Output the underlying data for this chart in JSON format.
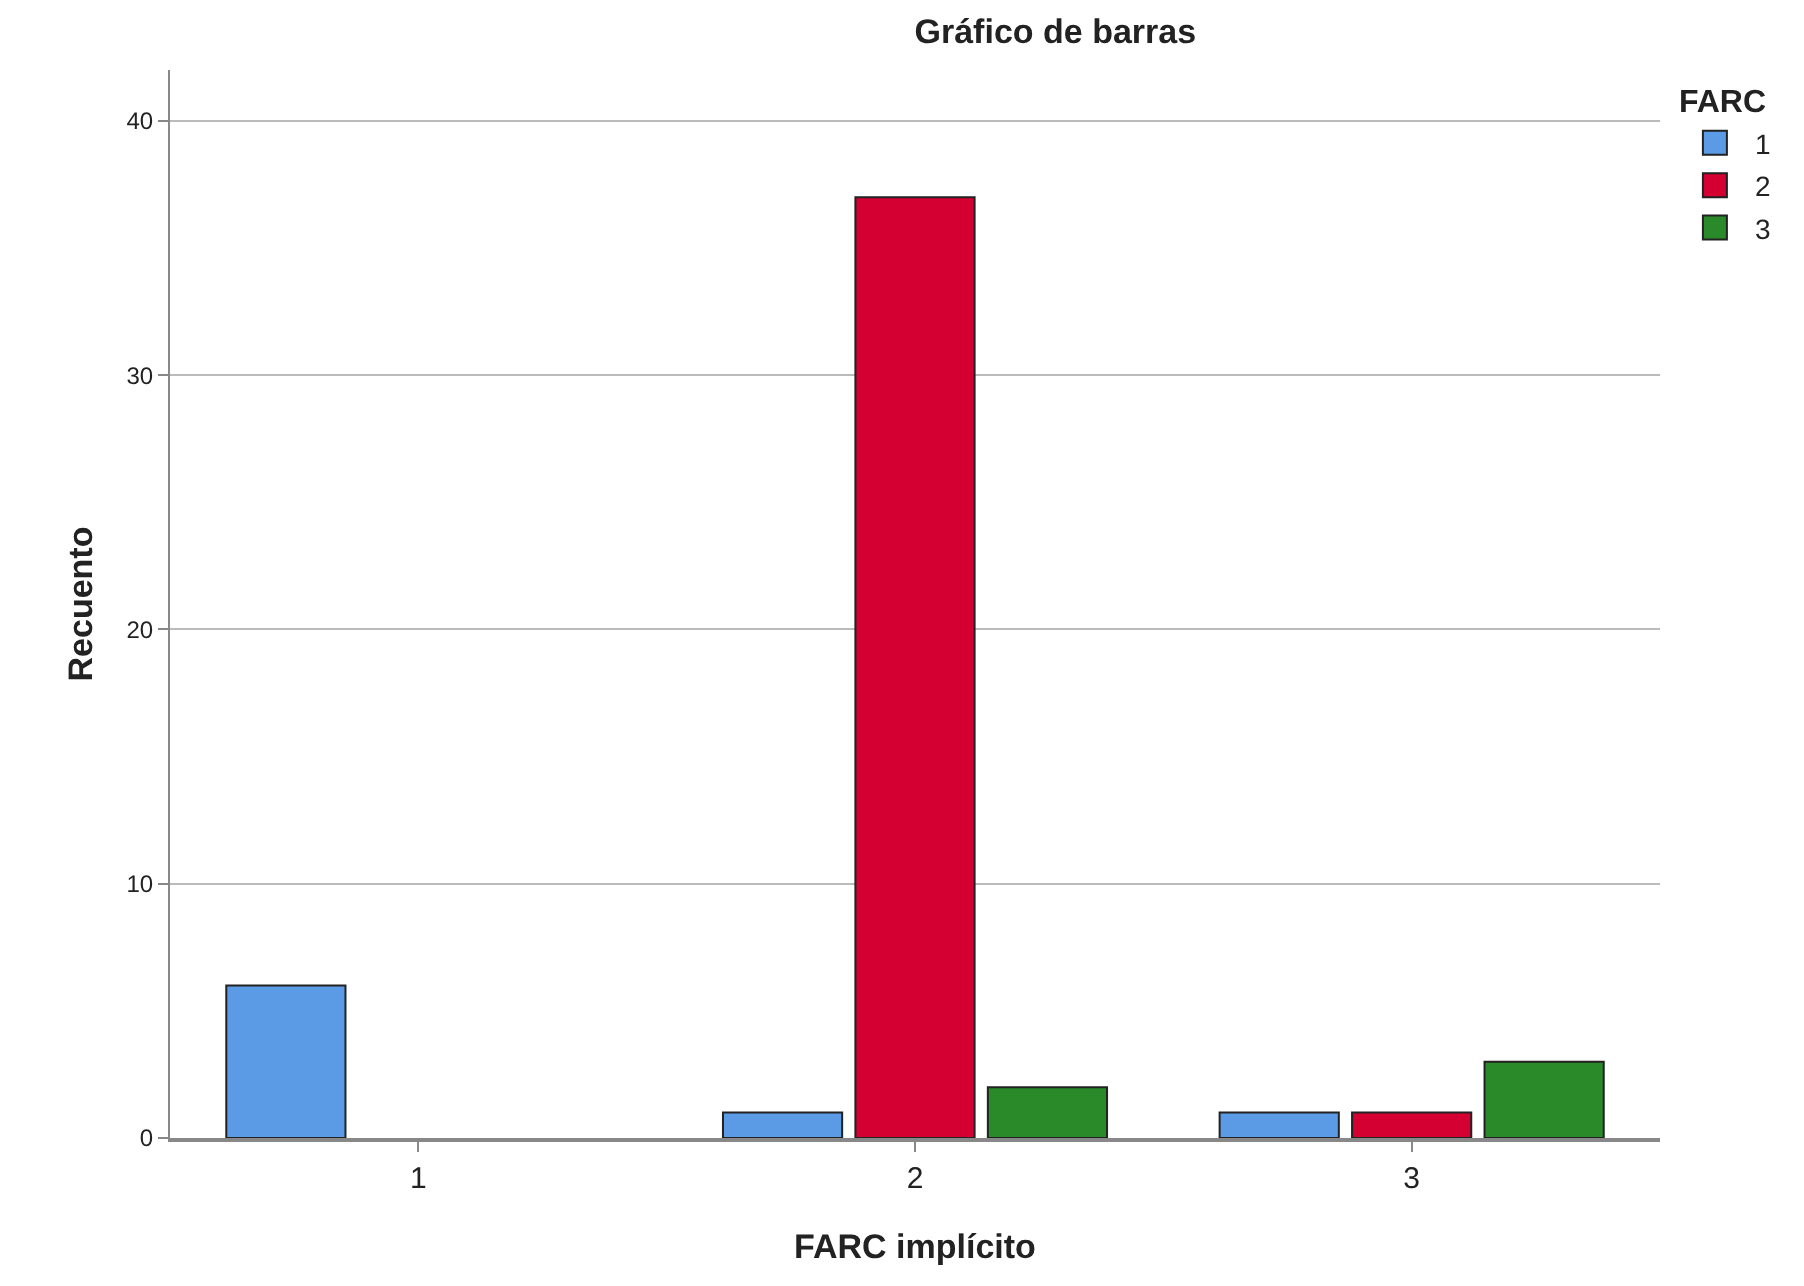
{
  "chart_data": {
    "type": "bar",
    "title": "Gráfico de barras",
    "xlabel": "FARC implícito",
    "ylabel": "Recuento",
    "legend_title": "FARC",
    "categories": [
      "1",
      "2",
      "3"
    ],
    "series": [
      {
        "name": "1",
        "color": "#5b9be6",
        "values": [
          6,
          1,
          1
        ]
      },
      {
        "name": "2",
        "color": "#d50032",
        "values": [
          null,
          37,
          1
        ]
      },
      {
        "name": "3",
        "color": "#2a8a2a",
        "values": [
          null,
          2,
          3
        ]
      }
    ],
    "ylim": [
      0,
      42
    ],
    "yticks": [
      0,
      10,
      20,
      30,
      40
    ],
    "grid": "y",
    "legend": "top right"
  }
}
